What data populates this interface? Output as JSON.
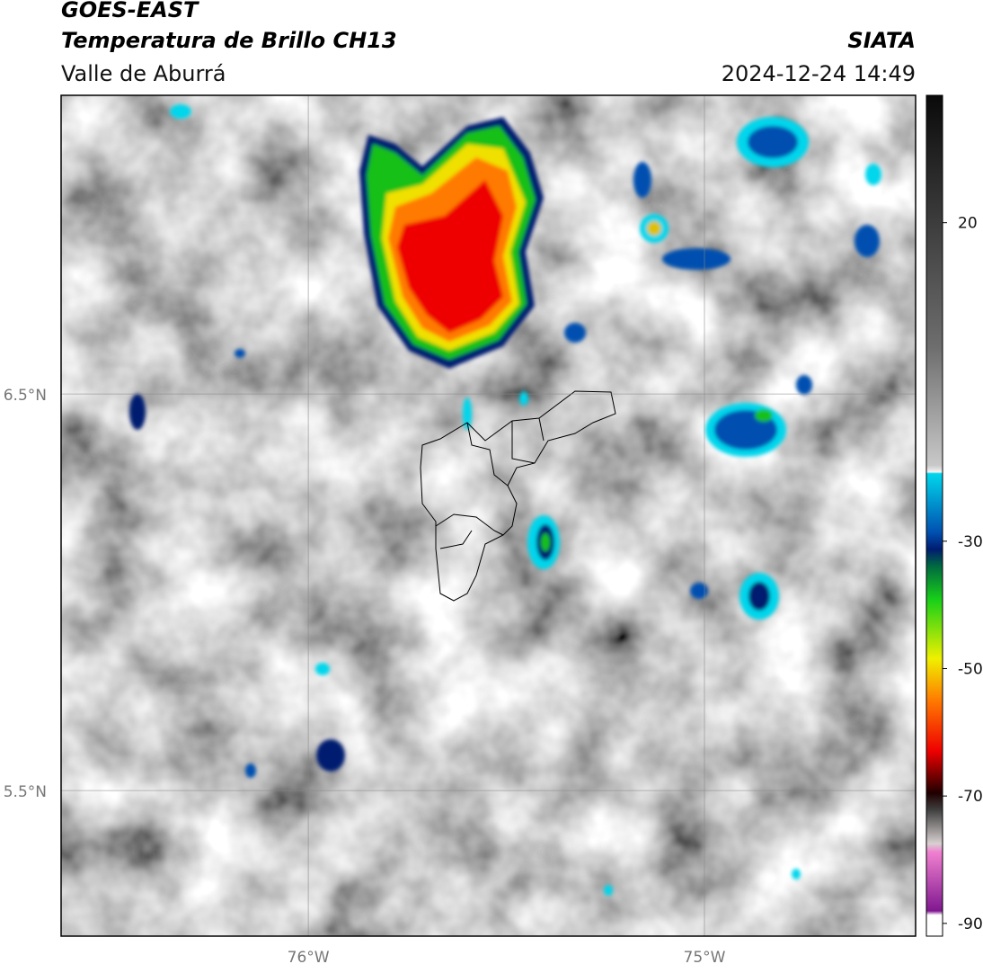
{
  "header": {
    "title": "GOES-EAST",
    "subtitle": "Temperatura de Brillo CH13",
    "region": "Valle de Aburrá",
    "source": "SIATA",
    "datetime": "2024-12-24 14:49"
  },
  "map": {
    "latlim": [
      5.133,
      7.253
    ],
    "lonlim": [
      -76.624,
      -74.467
    ],
    "latticks": [
      {
        "value": 6.5,
        "label": "6.5°N"
      },
      {
        "value": 5.5,
        "label": "5.5°N"
      }
    ],
    "lonticks": [
      {
        "value": -76,
        "label": "76°W"
      },
      {
        "value": -75,
        "label": "75°W"
      }
    ],
    "grid": true
  },
  "colorbar": {
    "lim": [
      -92,
      40
    ],
    "ticks": [
      20,
      -30,
      -50,
      -70,
      -90
    ]
  }
}
